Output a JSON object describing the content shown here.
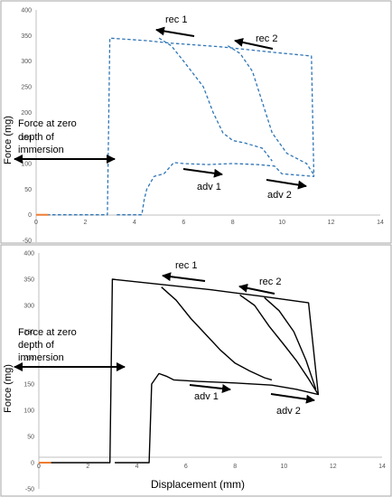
{
  "chart_data": [
    {
      "type": "line",
      "title": "",
      "ylabel": "Force (mg)",
      "xlabel": "",
      "xlim": [
        0,
        14
      ],
      "ylim": [
        -50,
        400
      ],
      "xticks": [
        "0",
        "2",
        "4",
        "6",
        "8",
        "10",
        "12",
        "14"
      ],
      "yticks": [
        "-50",
        "0",
        "50",
        "100",
        "150",
        "200",
        "250",
        "300",
        "350",
        "400"
      ],
      "grid": false,
      "line_color": "#2e75b6",
      "line_style": "dashed",
      "baseline_color": "#ed7d31",
      "series": [
        {
          "points": [
            [
              0,
              0
            ],
            [
              2.9,
              0
            ],
            [
              3.0,
              345
            ],
            [
              4.5,
              340
            ],
            [
              5.5,
              335
            ],
            [
              7.5,
              328
            ],
            [
              9.5,
              318
            ],
            [
              11.2,
              310
            ],
            [
              11.3,
              75
            ],
            [
              10.5,
              78
            ],
            [
              10,
              80
            ],
            [
              9.7,
              95
            ],
            [
              9.0,
              98
            ],
            [
              8,
              100
            ],
            [
              7,
              98
            ],
            [
              6,
              100
            ],
            [
              5.6,
              102
            ],
            [
              5.2,
              80
            ],
            [
              4.8,
              75
            ],
            [
              4.5,
              50
            ],
            [
              4.4,
              30
            ],
            [
              4.3,
              0
            ],
            [
              3.2,
              0
            ]
          ]
        },
        {
          "points": [
            [
              5,
              345
            ],
            [
              5.5,
              330
            ],
            [
              6,
              300
            ],
            [
              6.8,
              250
            ],
            [
              7.2,
              200
            ],
            [
              7.6,
              160
            ],
            [
              8,
              145
            ],
            [
              8.5,
              140
            ],
            [
              9.2,
              130
            ],
            [
              9.6,
              105
            ]
          ]
        },
        {
          "points": [
            [
              7.8,
              330
            ],
            [
              8.3,
              315
            ],
            [
              8.8,
              280
            ],
            [
              9.2,
              220
            ],
            [
              9.6,
              160
            ],
            [
              10.2,
              120
            ],
            [
              11,
              100
            ],
            [
              11.3,
              78
            ]
          ]
        },
        {
          "points": [
            [
              0,
              0
            ],
            [
              0.3,
              0
            ],
            [
              0.5,
              0
            ]
          ],
          "role": "baseline"
        }
      ],
      "annotations": {
        "rec1": "rec 1",
        "rec2": "rec 2",
        "adv1": "adv 1",
        "adv2": "adv 2",
        "force_line1": "Force at zero",
        "force_line2": "depth of",
        "force_line3": "immersion"
      }
    },
    {
      "type": "line",
      "title": "",
      "ylabel": "Force (mg)",
      "xlabel": "Displacement (mm)",
      "xlim": [
        0,
        14
      ],
      "ylim": [
        -50,
        400
      ],
      "xticks": [
        "0",
        "2",
        "4",
        "6",
        "8",
        "10",
        "12",
        "14"
      ],
      "yticks": [
        "-50",
        "0",
        "50",
        "100",
        "150",
        "200",
        "250",
        "300",
        "350",
        "400"
      ],
      "grid": false,
      "line_color": "#000000",
      "line_style": "solid",
      "baseline_color": "#ed7d31",
      "series": [
        {
          "points": [
            [
              0,
              0
            ],
            [
              2.9,
              0
            ],
            [
              3.0,
              350
            ],
            [
              5,
              340
            ],
            [
              7,
              330
            ],
            [
              9,
              318
            ],
            [
              11,
              305
            ],
            [
              11.4,
              130
            ],
            [
              10.5,
              140
            ],
            [
              9.5,
              148
            ],
            [
              8,
              152
            ],
            [
              6.5,
              155
            ],
            [
              5.5,
              158
            ],
            [
              5.2,
              165
            ],
            [
              4.9,
              170
            ],
            [
              4.6,
              150
            ],
            [
              4.5,
              0
            ],
            [
              3.1,
              0
            ]
          ]
        },
        {
          "points": [
            [
              5,
              335
            ],
            [
              5.6,
              310
            ],
            [
              6.2,
              275
            ],
            [
              6.8,
              245
            ],
            [
              7.4,
              215
            ],
            [
              8,
              190
            ],
            [
              8.6,
              175
            ],
            [
              9.2,
              162
            ],
            [
              9.5,
              158
            ]
          ]
        },
        {
          "points": [
            [
              8.2,
              320
            ],
            [
              8.8,
              300
            ],
            [
              9.4,
              260
            ],
            [
              10,
              225
            ],
            [
              10.5,
              195
            ],
            [
              11,
              160
            ],
            [
              11.4,
              130
            ]
          ]
        },
        {
          "points": [
            [
              9.2,
              315
            ],
            [
              9.8,
              290
            ],
            [
              10.4,
              250
            ],
            [
              10.9,
              195
            ],
            [
              11.3,
              140
            ]
          ]
        },
        {
          "points": [
            [
              0,
              0
            ],
            [
              0.3,
              0
            ],
            [
              0.5,
              0
            ]
          ],
          "role": "baseline"
        }
      ],
      "annotations": {
        "rec1": "rec 1",
        "rec2": "rec 2",
        "adv1": "adv 1",
        "adv2": "adv 2",
        "force_line1": "Force at zero",
        "force_line2": "depth of",
        "force_line3": "immersion"
      }
    }
  ]
}
